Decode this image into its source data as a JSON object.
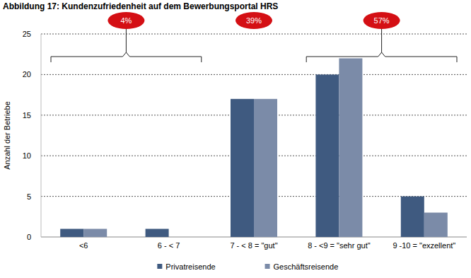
{
  "chart_data": {
    "type": "bar",
    "title": "Abbildung 17: Kundenzufriedenheit auf dem Bewerbungsportal HRS",
    "y_label": "Anzahl der Betriebe",
    "categories": [
      "<6",
      "6 - < 7",
      "7 - < 8 = \"gut\"",
      "8 - <9 = \"sehr gut\"",
      "9 -10 = \"exzellent\""
    ],
    "series": [
      {
        "name": "Privatreisende",
        "color": "#3f5a80",
        "values": [
          1,
          1,
          17,
          20,
          5
        ]
      },
      {
        "name": "Geschäftsreisende",
        "color": "#7b8ba8",
        "values": [
          1,
          0,
          17,
          22,
          3
        ]
      }
    ],
    "annotations": [
      "4%",
      "39%",
      "57%"
    ],
    "ylim": [
      0,
      25
    ],
    "yticks": [
      0,
      5,
      10,
      15,
      20,
      25
    ],
    "grid": true,
    "legend": "bottom"
  }
}
